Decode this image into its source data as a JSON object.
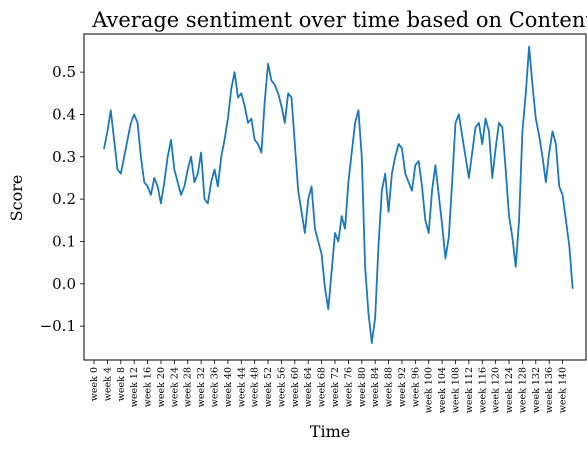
{
  "chart_data": {
    "type": "line",
    "title": "Average sentiment over time based on Content",
    "xlabel": "Time",
    "ylabel": "Score",
    "x_tick_labels": [
      "week 0",
      "week 4",
      "week 8",
      "week 12",
      "week 16",
      "week 20",
      "week 24",
      "week 28",
      "week 32",
      "week 36",
      "week 40",
      "week 44",
      "week 48",
      "week 52",
      "week 56",
      "week 60",
      "week 64",
      "week 68",
      "week 72",
      "week 76",
      "week 80",
      "week 84",
      "week 88",
      "week 92",
      "week 96",
      "week 100",
      "week 104",
      "week 108",
      "week 112",
      "week 116",
      "week 120",
      "week 124",
      "week 128",
      "week 132",
      "week 136",
      "week 140"
    ],
    "y_ticks": [
      -0.1,
      0.0,
      0.1,
      0.2,
      0.3,
      0.4,
      0.5
    ],
    "y_tick_labels": [
      "−0.1",
      "0.0",
      "0.1",
      "0.2",
      "0.3",
      "0.4",
      "0.5"
    ],
    "xlim": [
      -3,
      147
    ],
    "ylim": [
      -0.18,
      0.59
    ],
    "grid": false,
    "line_color": "#1f77b4",
    "series": [
      {
        "x": [
          3,
          4,
          5,
          6,
          7,
          8,
          9,
          10,
          11,
          12,
          13,
          14,
          15,
          16,
          17,
          18,
          19,
          20,
          21,
          22,
          23,
          24,
          25,
          26,
          27,
          28,
          29,
          30,
          31,
          32,
          33,
          34,
          35,
          36,
          37,
          38,
          39,
          40,
          41,
          42,
          43,
          44,
          45,
          46,
          47,
          48,
          49,
          50,
          51,
          52,
          53,
          54,
          55,
          56,
          57,
          58,
          59,
          60,
          61,
          62,
          63,
          64,
          65,
          66,
          67,
          68,
          69,
          70,
          71,
          72,
          73,
          74,
          75,
          76,
          77,
          78,
          79,
          80,
          81,
          82,
          83,
          84,
          85,
          86,
          87,
          88,
          89,
          90,
          91,
          92,
          93,
          94,
          95,
          96,
          97,
          98,
          99,
          100,
          101,
          102,
          103,
          104,
          105,
          106,
          107,
          108,
          109,
          110,
          111,
          112,
          113,
          114,
          115,
          116,
          117,
          118,
          119,
          120,
          121,
          122,
          123,
          124,
          125,
          126,
          127,
          128,
          129,
          130,
          131,
          132,
          133,
          134,
          135,
          136,
          137,
          138,
          139,
          140,
          141,
          142,
          143
        ],
        "y": [
          0.32,
          0.36,
          0.41,
          0.34,
          0.27,
          0.26,
          0.3,
          0.34,
          0.38,
          0.4,
          0.38,
          0.3,
          0.24,
          0.23,
          0.21,
          0.25,
          0.23,
          0.19,
          0.24,
          0.3,
          0.34,
          0.27,
          0.24,
          0.21,
          0.23,
          0.27,
          0.3,
          0.24,
          0.26,
          0.31,
          0.2,
          0.19,
          0.24,
          0.27,
          0.23,
          0.3,
          0.34,
          0.39,
          0.46,
          0.5,
          0.44,
          0.45,
          0.42,
          0.38,
          0.39,
          0.34,
          0.33,
          0.31,
          0.43,
          0.52,
          0.48,
          0.47,
          0.45,
          0.42,
          0.38,
          0.45,
          0.44,
          0.33,
          0.22,
          0.17,
          0.12,
          0.2,
          0.23,
          0.13,
          0.1,
          0.07,
          -0.01,
          -0.06,
          0.03,
          0.12,
          0.1,
          0.16,
          0.13,
          0.24,
          0.31,
          0.38,
          0.41,
          0.3,
          0.04,
          -0.07,
          -0.14,
          -0.08,
          0.09,
          0.22,
          0.26,
          0.17,
          0.26,
          0.3,
          0.33,
          0.32,
          0.26,
          0.24,
          0.22,
          0.28,
          0.29,
          0.23,
          0.15,
          0.12,
          0.22,
          0.28,
          0.21,
          0.14,
          0.06,
          0.11,
          0.24,
          0.38,
          0.4,
          0.35,
          0.3,
          0.25,
          0.31,
          0.37,
          0.38,
          0.33,
          0.39,
          0.36,
          0.25,
          0.32,
          0.38,
          0.37,
          0.27,
          0.16,
          0.11,
          0.04,
          0.15,
          0.36,
          0.45,
          0.56,
          0.47,
          0.39,
          0.35,
          0.3,
          0.24,
          0.31,
          0.36,
          0.33,
          0.23,
          0.21,
          0.15,
          0.09,
          -0.01
        ]
      }
    ]
  }
}
